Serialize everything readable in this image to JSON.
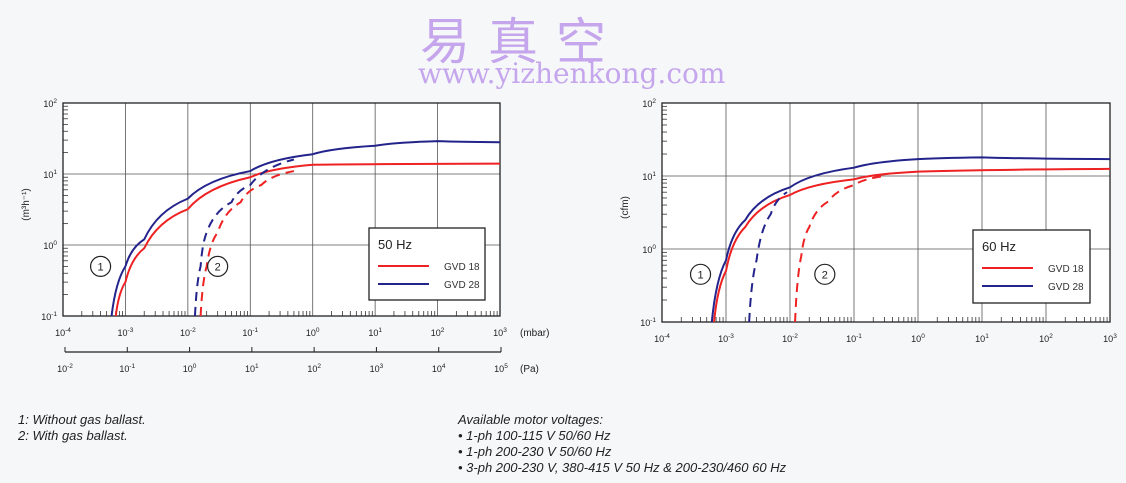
{
  "charts_common": {
    "colors": {
      "gvd18": "#ee2222",
      "gvd28": "#23238c"
    }
  },
  "chart_data": [
    {
      "type": "line",
      "xscale": "log",
      "yscale": "log",
      "xlim": [
        0.0001,
        1000
      ],
      "ylim": [
        0.1,
        100
      ],
      "ylabel": "(m³h⁻¹)",
      "xlabel": "(mbar)",
      "x2label": "(Pa)",
      "x_ticks": [
        "10-4",
        "10-3",
        "10-2",
        "10-1",
        "100",
        "101",
        "102",
        "103"
      ],
      "x2_ticks": [
        "10-2",
        "10-1",
        "100",
        "101",
        "102",
        "103",
        "104",
        "105"
      ],
      "y_ticks": [
        "10-1",
        "100",
        "101",
        "102"
      ],
      "grid": true,
      "legend": {
        "title": "50 Hz",
        "placement": "right",
        "entries": [
          "GVD 18",
          "GVD 28"
        ]
      },
      "annotations": [
        "1",
        "2"
      ],
      "series": [
        {
          "name": "GVD 28",
          "style": "solid",
          "color": "#23238c",
          "points": [
            [
              0.0006,
              0.1
            ],
            [
              0.001,
              0.5
            ],
            [
              0.002,
              1.2
            ],
            [
              0.01,
              4.5
            ],
            [
              0.1,
              11
            ],
            [
              1,
              19
            ],
            [
              10,
              25
            ],
            [
              100,
              29
            ],
            [
              1000,
              28
            ]
          ]
        },
        {
          "name": "GVD 18",
          "style": "solid",
          "color": "#ee2222",
          "points": [
            [
              0.0007,
              0.1
            ],
            [
              0.001,
              0.3
            ],
            [
              0.002,
              0.9
            ],
            [
              0.01,
              3.2
            ],
            [
              0.1,
              9
            ],
            [
              1,
              13.5
            ],
            [
              1000,
              14
            ]
          ]
        },
        {
          "name": "GVD 28",
          "style": "dashed",
          "color": "#23238c",
          "points": [
            [
              0.013,
              0.1
            ],
            [
              0.016,
              0.5
            ],
            [
              0.02,
              1.5
            ],
            [
              0.05,
              4
            ],
            [
              0.1,
              7
            ],
            [
              0.5,
              16
            ]
          ]
        },
        {
          "name": "GVD 18",
          "style": "dashed",
          "color": "#ee2222",
          "points": [
            [
              0.016,
              0.1
            ],
            [
              0.02,
              0.5
            ],
            [
              0.03,
              1.5
            ],
            [
              0.07,
              4
            ],
            [
              0.15,
              7
            ],
            [
              0.5,
              11
            ]
          ]
        }
      ]
    },
    {
      "type": "line",
      "xscale": "log",
      "yscale": "log",
      "xlim": [
        0.0001,
        1000
      ],
      "ylim": [
        0.1,
        100
      ],
      "ylabel": "(cfm)",
      "x_ticks": [
        "10-4",
        "10-3",
        "10-2",
        "10-1",
        "100",
        "101",
        "102",
        "103"
      ],
      "y_ticks": [
        "10-1",
        "100",
        "101",
        "102"
      ],
      "grid": true,
      "legend": {
        "title": "60 Hz",
        "placement": "right",
        "entries": [
          "GVD 18",
          "GVD 28"
        ]
      },
      "annotations": [
        "1",
        "2"
      ],
      "series": [
        {
          "name": "GVD 28",
          "style": "solid",
          "color": "#23238c",
          "points": [
            [
              0.0006,
              0.1
            ],
            [
              0.001,
              0.7
            ],
            [
              0.002,
              2.5
            ],
            [
              0.01,
              7
            ],
            [
              0.1,
              13
            ],
            [
              1,
              17
            ],
            [
              10,
              18
            ],
            [
              1000,
              17
            ]
          ]
        },
        {
          "name": "GVD 18",
          "style": "solid",
          "color": "#ee2222",
          "points": [
            [
              0.00065,
              0.1
            ],
            [
              0.001,
              0.5
            ],
            [
              0.002,
              2
            ],
            [
              0.01,
              5.5
            ],
            [
              0.1,
              9
            ],
            [
              1,
              11.5
            ],
            [
              1000,
              12.5
            ]
          ]
        },
        {
          "name": "GVD 28",
          "style": "dashed",
          "color": "#23238c",
          "points": [
            [
              0.0023,
              0.1
            ],
            [
              0.003,
              0.7
            ],
            [
              0.005,
              3
            ],
            [
              0.009,
              6
            ]
          ]
        },
        {
          "name": "GVD 18",
          "style": "dashed",
          "color": "#ee2222",
          "points": [
            [
              0.012,
              0.1
            ],
            [
              0.015,
              0.8
            ],
            [
              0.02,
              2
            ],
            [
              0.04,
              4.5
            ],
            [
              0.1,
              7.5
            ],
            [
              0.3,
              10
            ]
          ]
        }
      ]
    }
  ],
  "notes": {
    "line1": "1: Without gas ballast.",
    "line2": "2: With gas ballast."
  },
  "voltages": {
    "title": "Available motor voltages:",
    "items": [
      "•  1-ph 100-115 V 50/60 Hz",
      "•  1-ph 200-230 V 50/60 Hz",
      "•  3-ph 200-230 V, 380-415 V 50 Hz & 200-230/460 60 Hz"
    ]
  },
  "watermark": {
    "chars": "易真空",
    "url": "www.yizhenkong.com"
  }
}
